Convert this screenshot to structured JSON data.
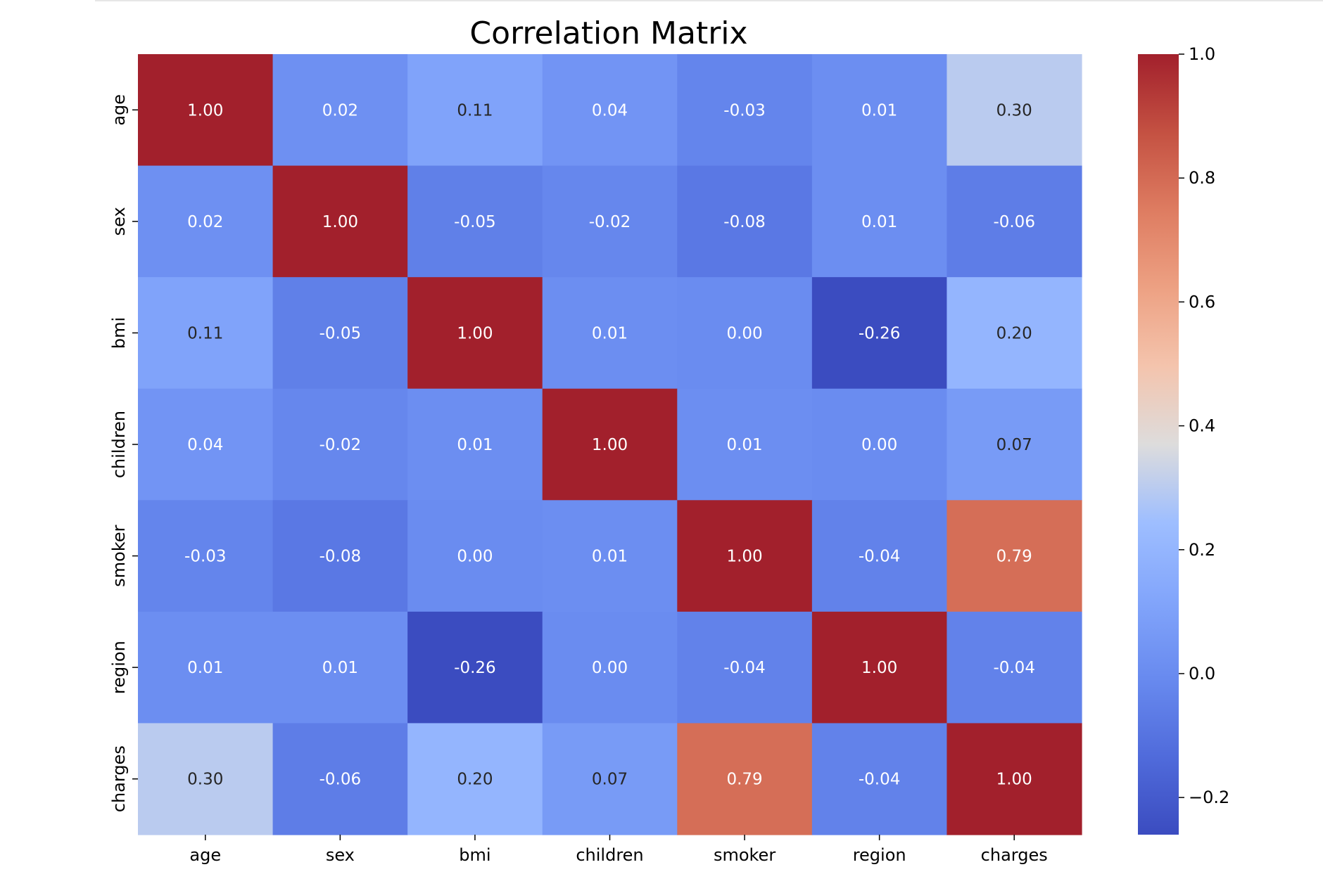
{
  "chart_data": {
    "type": "heatmap",
    "title": "Correlation Matrix",
    "xlabel": "",
    "ylabel": "",
    "categories": [
      "age",
      "sex",
      "bmi",
      "children",
      "smoker",
      "region",
      "charges"
    ],
    "rows": [
      "age",
      "sex",
      "bmi",
      "children",
      "smoker",
      "region",
      "charges"
    ],
    "values": [
      [
        1.0,
        0.02,
        0.11,
        0.04,
        -0.03,
        0.01,
        0.3
      ],
      [
        0.02,
        1.0,
        -0.05,
        -0.02,
        -0.08,
        0.01,
        -0.06
      ],
      [
        0.11,
        -0.05,
        1.0,
        0.01,
        0.0,
        -0.26,
        0.2
      ],
      [
        0.04,
        -0.02,
        0.01,
        1.0,
        0.01,
        0.0,
        0.07
      ],
      [
        -0.03,
        -0.08,
        0.0,
        0.01,
        1.0,
        -0.04,
        0.79
      ],
      [
        0.01,
        0.01,
        -0.26,
        0.0,
        -0.04,
        1.0,
        -0.04
      ],
      [
        0.3,
        -0.06,
        0.2,
        0.07,
        0.79,
        -0.04,
        1.0
      ]
    ],
    "labels": [
      [
        "1.00",
        "0.02",
        "0.11",
        "0.04",
        "-0.03",
        "0.01",
        "0.30"
      ],
      [
        "0.02",
        "1.00",
        "-0.05",
        "-0.02",
        "-0.08",
        "0.01",
        "-0.06"
      ],
      [
        "0.11",
        "-0.05",
        "1.00",
        "0.01",
        "0.00",
        "-0.26",
        "0.20"
      ],
      [
        "0.04",
        "-0.02",
        "0.01",
        "1.00",
        "0.01",
        "0.00",
        "0.07"
      ],
      [
        "-0.03",
        "-0.08",
        "0.00",
        "0.01",
        "1.00",
        "-0.04",
        "0.79"
      ],
      [
        "0.01",
        "0.01",
        "-0.26",
        "0.00",
        "-0.04",
        "1.00",
        "-0.04"
      ],
      [
        "0.30",
        "-0.06",
        "0.20",
        "0.07",
        "0.79",
        "-0.04",
        "1.00"
      ]
    ],
    "colormap": "coolwarm",
    "vmin": -0.26,
    "vmax": 1.0,
    "colorbar_ticks": [
      1.0,
      0.8,
      0.6,
      0.4,
      0.2,
      0.0,
      -0.2
    ],
    "colorbar_tick_labels": [
      "1.0",
      "0.8",
      "0.6",
      "0.4",
      "0.2",
      "0.0",
      "−0.2"
    ],
    "colorbar_placement": "right",
    "grid": false,
    "colors": {
      "dark_red": "#a2202c",
      "salmon": "#d77a61",
      "neutral": "#dddcdc",
      "dark_blue": "#3b4cc0",
      "light_blue": "#a3c1fe"
    }
  }
}
